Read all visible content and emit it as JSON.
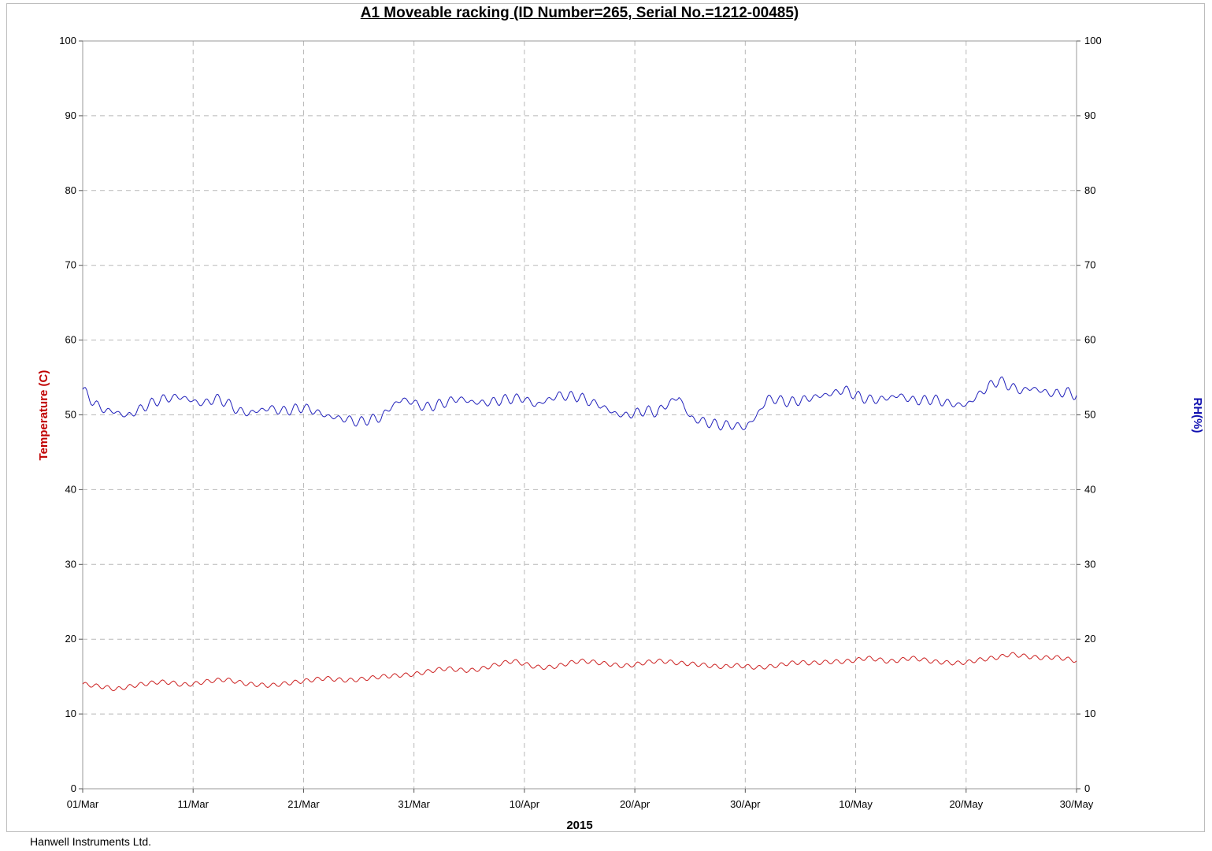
{
  "chart_data": {
    "type": "line",
    "title": "A1 Moveable racking (ID Number=265, Serial No.=1212-00485)",
    "xlabel": "2015",
    "ylabel_left": "Temperature (C)",
    "ylabel_right": "RH(%)",
    "x_ticks": [
      "01/Mar",
      "11/Mar",
      "21/Mar",
      "31/Mar",
      "10/Apr",
      "20/Apr",
      "30/Apr",
      "10/May",
      "20/May",
      "30/May"
    ],
    "y_ticks": [
      "0",
      "10",
      "20",
      "30",
      "40",
      "50",
      "60",
      "70",
      "80",
      "90",
      "100"
    ],
    "ylim_left": [
      0,
      100
    ],
    "ylim_right": [
      0,
      100
    ],
    "grid": true,
    "x_unit": "day of period (01/Mar = 0, 30/May = 90)",
    "series": [
      {
        "name": "Temperature (C)",
        "axis": "left",
        "color": "#cc2222",
        "x": [
          0,
          1,
          2,
          3,
          4,
          5,
          6,
          7,
          8,
          9,
          10,
          11,
          12,
          13,
          14,
          15,
          16,
          17,
          18,
          19,
          20,
          21,
          22,
          23,
          24,
          25,
          26,
          27,
          28,
          29,
          30,
          31,
          32,
          33,
          34,
          35,
          36,
          37,
          38,
          39,
          40,
          41,
          42,
          43,
          44,
          45,
          46,
          47,
          48,
          49,
          50,
          51,
          52,
          53,
          54,
          55,
          56,
          57,
          58,
          59,
          60,
          61,
          62,
          63,
          64,
          65,
          66,
          67,
          68,
          69,
          70,
          71,
          72,
          73,
          74,
          75,
          76,
          77,
          78,
          79,
          80,
          81,
          82,
          83,
          84,
          85,
          86,
          87,
          88,
          89,
          90
        ],
        "y": [
          14.0,
          13.8,
          13.6,
          13.3,
          13.6,
          13.9,
          14.1,
          14.3,
          14.2,
          13.9,
          14.0,
          14.3,
          14.5,
          14.6,
          14.3,
          14.0,
          13.9,
          13.8,
          14.0,
          14.2,
          14.4,
          14.6,
          14.8,
          14.6,
          14.5,
          14.6,
          14.8,
          15.0,
          15.1,
          15.2,
          15.3,
          15.6,
          15.9,
          16.1,
          15.9,
          15.8,
          16.0,
          16.4,
          16.8,
          17.1,
          16.7,
          16.3,
          16.2,
          16.4,
          16.8,
          17.1,
          17.0,
          16.8,
          16.6,
          16.4,
          16.6,
          16.9,
          17.1,
          17.0,
          16.8,
          16.7,
          16.6,
          16.4,
          16.3,
          16.5,
          16.4,
          16.2,
          16.3,
          16.5,
          16.8,
          16.9,
          16.8,
          16.9,
          17.0,
          17.0,
          17.2,
          17.5,
          17.3,
          17.0,
          17.2,
          17.5,
          17.3,
          17.0,
          16.9,
          16.8,
          16.9,
          17.2,
          17.4,
          17.6,
          18.0,
          17.8,
          17.6,
          17.5,
          17.6,
          17.4,
          17.1
        ]
      },
      {
        "name": "RH(%)",
        "axis": "right",
        "color": "#2222bb",
        "x": [
          0,
          1,
          2,
          3,
          4,
          5,
          6,
          7,
          8,
          9,
          10,
          11,
          12,
          13,
          14,
          15,
          16,
          17,
          18,
          19,
          20,
          21,
          22,
          23,
          24,
          25,
          26,
          27,
          28,
          29,
          30,
          31,
          32,
          33,
          34,
          35,
          36,
          37,
          38,
          39,
          40,
          41,
          42,
          43,
          44,
          45,
          46,
          47,
          48,
          49,
          50,
          51,
          52,
          53,
          54,
          55,
          56,
          57,
          58,
          59,
          60,
          61,
          62,
          63,
          64,
          65,
          66,
          67,
          68,
          69,
          70,
          71,
          72,
          73,
          74,
          75,
          76,
          77,
          78,
          79,
          80,
          81,
          82,
          83,
          84,
          85,
          86,
          87,
          88,
          89,
          90
        ],
        "y": [
          53.4,
          51.6,
          50.6,
          50.4,
          49.8,
          50.6,
          51.4,
          52.0,
          52.3,
          52.4,
          51.8,
          51.5,
          52.2,
          51.7,
          50.6,
          50.2,
          50.6,
          50.9,
          50.5,
          50.7,
          51.0,
          50.5,
          49.9,
          49.6,
          49.4,
          49.0,
          49.4,
          49.6,
          51.2,
          52.1,
          51.6,
          51.0,
          51.3,
          51.7,
          52.2,
          51.8,
          51.6,
          51.7,
          52.0,
          52.2,
          52.2,
          51.3,
          51.9,
          52.6,
          52.5,
          52.4,
          51.7,
          51.2,
          50.3,
          49.9,
          50.2,
          50.6,
          50.3,
          51.5,
          52.4,
          49.6,
          49.2,
          48.8,
          48.6,
          48.6,
          48.3,
          49.8,
          52.2,
          52.0,
          51.7,
          51.9,
          52.3,
          52.6,
          52.9,
          53.4,
          52.6,
          52.1,
          52.0,
          52.3,
          52.6,
          52.0,
          51.9,
          52.1,
          51.7,
          51.4,
          51.3,
          52.5,
          53.8,
          54.6,
          53.8,
          53.2,
          53.6,
          53.1,
          52.8,
          53.1,
          52.6
        ]
      }
    ]
  },
  "footer": "Hanwell Instruments Ltd."
}
